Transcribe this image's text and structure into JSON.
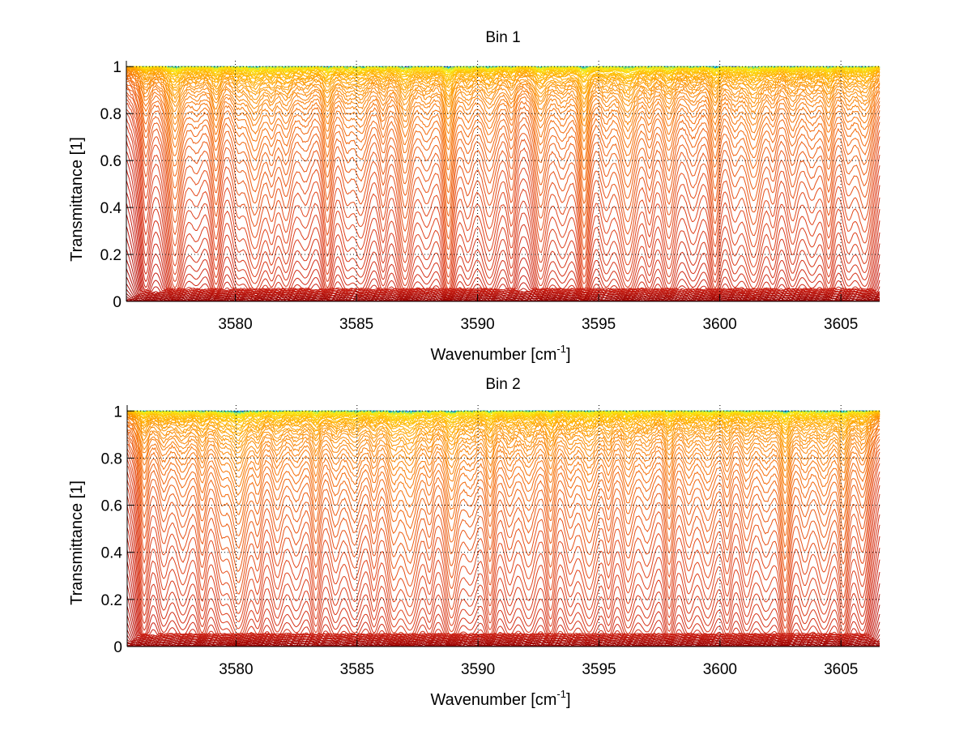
{
  "chart_data": [
    {
      "type": "line",
      "title": "Bin 1",
      "xlabel": "Wavenumber [cm",
      "xlabel_sup": "-1",
      "xlabel_end": "]",
      "ylabel": "Transmittance [1]",
      "xlim": [
        3575.5,
        3606.6
      ],
      "ylim": [
        0,
        1.025
      ],
      "xticks": [
        3580,
        3585,
        3590,
        3595,
        3600,
        3605
      ],
      "xtick_labels": [
        "3580",
        "3585",
        "3590",
        "3595",
        "3600",
        "3605"
      ],
      "yticks": [
        0,
        0.2,
        0.4,
        0.6,
        0.8,
        1
      ],
      "ytick_labels": [
        "0",
        "0.2",
        "0.4",
        "0.6",
        "0.8",
        "1"
      ],
      "grid": true,
      "legend": "none",
      "series_description": "Family of ~70 transmittance spectra T = exp(-tau*A(nu)) for increasing optical depth; colormap from blue/green (low tau) through yellow, orange, red to dark red (high tau)",
      "n_series": 70,
      "tau_range": [
        0.005,
        60
      ],
      "line_centers": [
        3576.3,
        3577.5,
        3578.4,
        3579.2,
        3580.1,
        3580.8,
        3581.5,
        3582.1,
        3582.9,
        3583.8,
        3584.6,
        3585.2,
        3586.1,
        3587.0,
        3587.9,
        3588.8,
        3589.6,
        3590.5,
        3591.4,
        3592.6,
        3593.5,
        3594.4,
        3595.3,
        3596.2,
        3597.1,
        3597.9,
        3598.9,
        3599.8,
        3600.6,
        3601.4,
        3602.2,
        3603.0,
        3603.8,
        3604.5,
        3605.3,
        3606.0
      ],
      "line_strengths": [
        0.6,
        1.6,
        0.5,
        1.1,
        0.6,
        1.3,
        0.7,
        0.9,
        0.6,
        1.2,
        0.6,
        0.9,
        0.7,
        1.4,
        0.7,
        1.8,
        0.7,
        1.0,
        0.7,
        1.2,
        0.7,
        1.8,
        0.7,
        1.5,
        0.7,
        1.1,
        0.7,
        1.2,
        0.7,
        1.3,
        0.6,
        0.8,
        0.7,
        1.0,
        0.7,
        1.1
      ]
    },
    {
      "type": "line",
      "title": "Bin 2",
      "xlabel": "Wavenumber [cm",
      "xlabel_sup": "-1",
      "xlabel_end": "]",
      "ylabel": "Transmittance [1]",
      "xlim": [
        3575.5,
        3606.6
      ],
      "ylim": [
        0,
        1.025
      ],
      "xticks": [
        3580,
        3585,
        3590,
        3595,
        3600,
        3605
      ],
      "xtick_labels": [
        "3580",
        "3585",
        "3590",
        "3595",
        "3600",
        "3605"
      ],
      "yticks": [
        0,
        0.2,
        0.4,
        0.6,
        0.8,
        1
      ],
      "ytick_labels": [
        "0",
        "0.2",
        "0.4",
        "0.6",
        "0.8",
        "1"
      ],
      "grid": true,
      "legend": "none",
      "series_description": "Family of ~70 transmittance spectra T = exp(-tau*A(nu)) for increasing optical depth; colormap from blue/green (low tau) through yellow, orange, red to dark red (high tau)",
      "n_series": 70,
      "tau_range": [
        0.005,
        60
      ],
      "line_centers": [
        3576.2,
        3577.0,
        3577.8,
        3578.6,
        3579.4,
        3580.1,
        3580.9,
        3581.7,
        3582.5,
        3583.3,
        3584.1,
        3584.9,
        3585.7,
        3586.5,
        3587.2,
        3588.0,
        3588.9,
        3589.7,
        3590.5,
        3591.3,
        3592.1,
        3593.0,
        3593.8,
        3594.6,
        3595.4,
        3596.2,
        3597.0,
        3597.9,
        3598.7,
        3599.5,
        3600.3,
        3601.1,
        3601.9,
        3602.7,
        3603.5,
        3604.3,
        3605.1,
        3605.9
      ],
      "line_strengths": [
        0.9,
        0.7,
        0.8,
        0.9,
        0.8,
        1.8,
        0.8,
        0.9,
        0.8,
        1.1,
        0.8,
        1.0,
        0.8,
        1.2,
        1.5,
        0.8,
        1.6,
        0.8,
        1.2,
        0.8,
        1.0,
        1.1,
        0.8,
        1.2,
        0.8,
        1.0,
        0.8,
        1.1,
        0.8,
        1.0,
        0.8,
        0.9,
        0.8,
        1.7,
        0.8,
        1.1,
        1.3,
        0.9
      ]
    }
  ]
}
